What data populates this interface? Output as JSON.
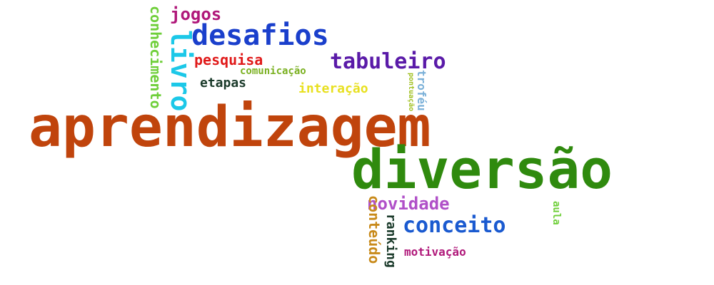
{
  "words": {
    "aprendizagem": {
      "text": "aprendizagem",
      "color": "#c0440c"
    },
    "diversao": {
      "text": "diversão",
      "color": "#2f8a0e"
    },
    "desafios": {
      "text": "desafios",
      "color": "#1a3fcc"
    },
    "tabuleiro": {
      "text": "tabuleiro",
      "color": "#5a1aa8"
    },
    "livro": {
      "text": "livro",
      "color": "#1cc8e8"
    },
    "jogos": {
      "text": "jogos",
      "color": "#b0187a"
    },
    "conhecimento": {
      "text": "conhecimento",
      "color": "#6fcf3a"
    },
    "pesquisa": {
      "text": "pesquisa",
      "color": "#e01a1a"
    },
    "comunicacao": {
      "text": "comunicação",
      "color": "#7ab020"
    },
    "etapas": {
      "text": "etapas",
      "color": "#1a3a2a"
    },
    "interacao": {
      "text": "interação",
      "color": "#e8e020"
    },
    "trofeu": {
      "text": "troféu",
      "color": "#7ab0d8"
    },
    "pontuacao": {
      "text": "pontuação",
      "color": "#a0c020"
    },
    "novidade": {
      "text": "novidade",
      "color": "#b050c8"
    },
    "conceito": {
      "text": "conceito",
      "color": "#1a5ad0"
    },
    "conteudo": {
      "text": "conteúdo",
      "color": "#c88a1a"
    },
    "ranking": {
      "text": "ranking",
      "color": "#1a3a2a"
    },
    "aula": {
      "text": "aula",
      "color": "#6fcf3a"
    },
    "motivacao": {
      "text": "motivação",
      "color": "#b0187a"
    }
  }
}
